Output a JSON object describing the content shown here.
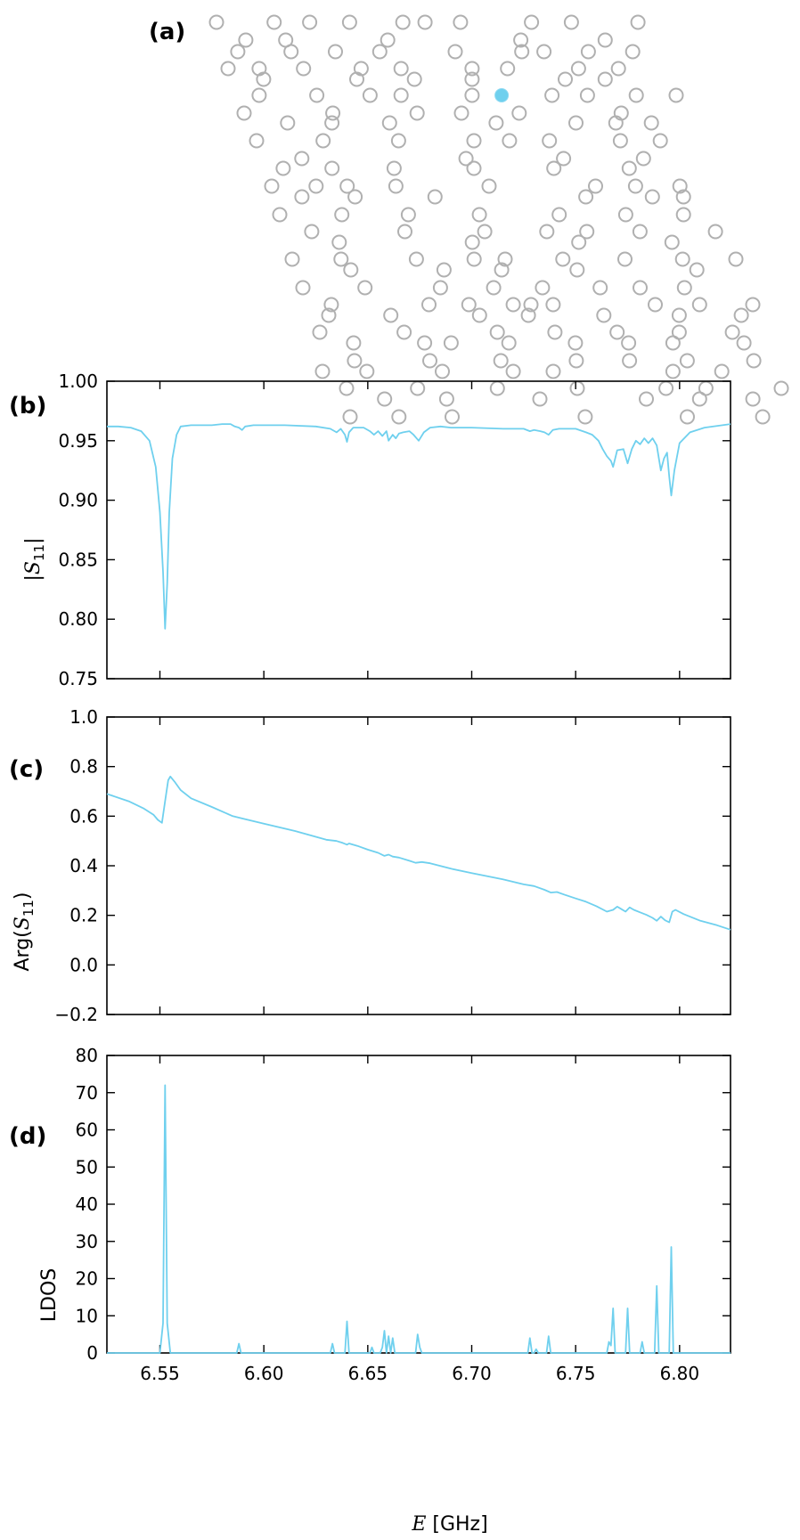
{
  "colors": {
    "accent": "#6fd0ee",
    "hole": "#b0b0b0",
    "axis": "#000000"
  },
  "panel_a": {
    "label": "(a)",
    "rows": [
      [
        25,
        17,
        [
          0.0,
          0.13,
          0.21,
          0.3,
          0.42,
          0.47,
          0.55,
          0.71,
          0.8,
          0.95
        ]
      ],
      [
        45,
        20,
        [
          0.06,
          0.15,
          0.38,
          0.68,
          0.87
        ]
      ],
      [
        58,
        26,
        [
          0.03,
          0.15,
          0.25,
          0.35,
          0.52,
          0.67,
          0.72,
          0.82,
          0.92
        ]
      ],
      [
        77,
        30,
        [
          0.0,
          0.07,
          0.17,
          0.3,
          0.39,
          0.55,
          0.63,
          0.79,
          0.88
        ]
      ],
      [
        89,
        40,
        [
          0.06,
          0.27,
          0.4,
          0.53,
          0.74,
          0.83
        ]
      ],
      [
        107,
        35,
        [
          0.06,
          0.19,
          0.31,
          0.38,
          0.54,
          0.72,
          0.8,
          0.91,
          1.0
        ]
      ],
      [
        127,
        48,
        [
          0.0,
          0.2,
          0.39,
          0.49,
          0.62,
          0.85
        ]
      ],
      [
        138,
        47,
        [
          0.1,
          0.2,
          0.33,
          0.57,
          0.75,
          0.84,
          0.92
        ]
      ],
      [
        158,
        62,
        [
          0.0,
          0.15,
          0.32,
          0.49,
          0.57,
          0.66,
          0.82,
          0.91
        ]
      ],
      [
        178,
        68,
        [
          0.09,
          0.46,
          0.68,
          0.86
        ]
      ],
      [
        189,
        62,
        [
          0.06,
          0.17,
          0.31,
          0.49,
          0.67,
          0.84
        ]
      ],
      [
        209,
        79,
        [
          0.0,
          0.1,
          0.17,
          0.28,
          0.49,
          0.73,
          0.82,
          0.92
        ]
      ],
      [
        221,
        83,
        [
          0.06,
          0.18,
          0.36,
          0.7,
          0.85,
          0.92
        ]
      ],
      [
        241,
        88,
        [
          0.0,
          0.14,
          0.29,
          0.45,
          0.63,
          0.78,
          0.91
        ]
      ],
      [
        260,
        99,
        [
          0.05,
          0.26,
          0.44,
          0.58,
          0.67,
          0.79,
          0.96
        ]
      ],
      [
        272,
        100,
        [
          0.11,
          0.41,
          0.65,
          0.86
        ]
      ],
      [
        291,
        102,
        [
          0.0,
          0.11,
          0.28,
          0.41,
          0.48,
          0.61,
          0.75,
          0.88,
          1.0
        ]
      ],
      [
        303,
        113,
        [
          0.11,
          0.32,
          0.45,
          0.62,
          0.89
        ]
      ],
      [
        323,
        114,
        [
          0.0,
          0.14,
          0.31,
          0.43,
          0.54,
          0.67,
          0.76,
          0.86
        ]
      ],
      [
        342,
        131,
        [
          0.03,
          0.25,
          0.34,
          0.44,
          0.48,
          0.53,
          0.76,
          0.86,
          0.98
        ]
      ],
      [
        354,
        143,
        [
          0.0,
          0.14,
          0.34,
          0.45,
          0.62,
          0.79,
          0.93
        ]
      ],
      [
        373,
        133,
        [
          0.0,
          0.19,
          0.4,
          0.53,
          0.67,
          0.81,
          0.93
        ]
      ],
      [
        385,
        141,
        [
          0.06,
          0.22,
          0.28,
          0.41,
          0.56,
          0.68,
          0.78,
          0.94
        ]
      ],
      [
        405,
        142,
        [
          0.06,
          0.23,
          0.39,
          0.56,
          0.68,
          0.81,
          0.96
        ]
      ],
      [
        417,
        136,
        [
          0.0,
          0.1,
          0.27,
          0.43,
          0.52,
          0.79,
          0.9
        ]
      ],
      [
        436,
        163,
        [
          0.0,
          0.16,
          0.34,
          0.52,
          0.72,
          0.81,
          0.98
        ]
      ],
      [
        448,
        136,
        [
          0.14,
          0.28,
          0.49,
          0.73,
          0.85,
          0.97
        ]
      ],
      [
        468,
        167,
        [
          0.0,
          0.11,
          0.23,
          0.53,
          0.76,
          0.93
        ]
      ]
    ],
    "highlight": [
      108,
      107
    ]
  },
  "x_axis": {
    "label_var": "E",
    "label_unit": " [GHz]",
    "min": 6.5245,
    "max": 6.8245,
    "ticks": [
      "6.55",
      "6.60",
      "6.65",
      "6.70",
      "6.75",
      "6.80"
    ],
    "tick_values": [
      6.55,
      6.6,
      6.65,
      6.7,
      6.75,
      6.8
    ]
  },
  "chart_data": [
    {
      "type": "line",
      "panel": "(b)",
      "ylabel": "|S11|",
      "ylim": [
        0.75,
        1.0
      ],
      "yticks": [
        "0.75",
        "0.80",
        "0.85",
        "0.90",
        "0.95",
        "1.00"
      ],
      "ytick_values": [
        0.75,
        0.8,
        0.85,
        0.9,
        0.95,
        1.0
      ],
      "xlim": [
        6.5245,
        6.8245
      ],
      "points": [
        [
          6.5245,
          0.962
        ],
        [
          6.53,
          0.962
        ],
        [
          6.536,
          0.961
        ],
        [
          6.541,
          0.958
        ],
        [
          6.545,
          0.95
        ],
        [
          6.548,
          0.928
        ],
        [
          6.55,
          0.89
        ],
        [
          6.5515,
          0.84
        ],
        [
          6.5525,
          0.792
        ],
        [
          6.5535,
          0.83
        ],
        [
          6.5545,
          0.89
        ],
        [
          6.556,
          0.935
        ],
        [
          6.558,
          0.955
        ],
        [
          6.56,
          0.962
        ],
        [
          6.565,
          0.963
        ],
        [
          6.575,
          0.963
        ],
        [
          6.58,
          0.964
        ],
        [
          6.584,
          0.964
        ],
        [
          6.586,
          0.962
        ],
        [
          6.588,
          0.961
        ],
        [
          6.5895,
          0.959
        ],
        [
          6.591,
          0.962
        ],
        [
          6.595,
          0.963
        ],
        [
          6.61,
          0.963
        ],
        [
          6.625,
          0.962
        ],
        [
          6.632,
          0.96
        ],
        [
          6.635,
          0.957
        ],
        [
          6.637,
          0.96
        ],
        [
          6.639,
          0.955
        ],
        [
          6.64,
          0.949
        ],
        [
          6.641,
          0.957
        ],
        [
          6.643,
          0.961
        ],
        [
          6.648,
          0.961
        ],
        [
          6.651,
          0.958
        ],
        [
          6.653,
          0.955
        ],
        [
          6.655,
          0.958
        ],
        [
          6.657,
          0.954
        ],
        [
          6.659,
          0.958
        ],
        [
          6.66,
          0.95
        ],
        [
          6.662,
          0.955
        ],
        [
          6.6635,
          0.952
        ],
        [
          6.665,
          0.956
        ],
        [
          6.667,
          0.957
        ],
        [
          6.67,
          0.958
        ],
        [
          6.672,
          0.955
        ],
        [
          6.6745,
          0.95
        ],
        [
          6.677,
          0.957
        ],
        [
          6.68,
          0.961
        ],
        [
          6.685,
          0.962
        ],
        [
          6.69,
          0.961
        ],
        [
          6.7,
          0.961
        ],
        [
          6.715,
          0.96
        ],
        [
          6.725,
          0.96
        ],
        [
          6.728,
          0.958
        ],
        [
          6.73,
          0.959
        ],
        [
          6.733,
          0.958
        ],
        [
          6.735,
          0.957
        ],
        [
          6.737,
          0.955
        ],
        [
          6.739,
          0.959
        ],
        [
          6.742,
          0.96
        ],
        [
          6.75,
          0.96
        ],
        [
          6.755,
          0.957
        ],
        [
          6.758,
          0.955
        ],
        [
          6.761,
          0.95
        ],
        [
          6.763,
          0.943
        ],
        [
          6.765,
          0.937
        ],
        [
          6.767,
          0.933
        ],
        [
          6.768,
          0.928
        ],
        [
          6.77,
          0.942
        ],
        [
          6.773,
          0.943
        ],
        [
          6.775,
          0.931
        ],
        [
          6.777,
          0.943
        ],
        [
          6.779,
          0.95
        ],
        [
          6.781,
          0.947
        ],
        [
          6.783,
          0.952
        ],
        [
          6.785,
          0.948
        ],
        [
          6.787,
          0.952
        ],
        [
          6.789,
          0.946
        ],
        [
          6.791,
          0.925
        ],
        [
          6.7925,
          0.935
        ],
        [
          6.794,
          0.94
        ],
        [
          6.795,
          0.92
        ],
        [
          6.796,
          0.904
        ],
        [
          6.7975,
          0.925
        ],
        [
          6.8,
          0.948
        ],
        [
          6.805,
          0.957
        ],
        [
          6.812,
          0.961
        ],
        [
          6.8245,
          0.964
        ]
      ]
    },
    {
      "type": "line",
      "panel": "(c)",
      "ylabel": "Arg(S11)",
      "ylim": [
        -0.2,
        1.0
      ],
      "yticks": [
        "−0.2",
        "0.0",
        "0.2",
        "0.4",
        "0.6",
        "0.8",
        "1.0"
      ],
      "ytick_values": [
        -0.2,
        0.0,
        0.2,
        0.4,
        0.6,
        0.8,
        1.0
      ],
      "xlim": [
        6.5245,
        6.8245
      ],
      "points": [
        [
          6.5245,
          0.69
        ],
        [
          6.535,
          0.66
        ],
        [
          6.542,
          0.632
        ],
        [
          6.547,
          0.605
        ],
        [
          6.549,
          0.585
        ],
        [
          6.551,
          0.573
        ],
        [
          6.5525,
          0.66
        ],
        [
          6.554,
          0.745
        ],
        [
          6.555,
          0.76
        ],
        [
          6.557,
          0.74
        ],
        [
          6.56,
          0.705
        ],
        [
          6.565,
          0.672
        ],
        [
          6.575,
          0.637
        ],
        [
          6.585,
          0.6
        ],
        [
          6.59,
          0.59
        ],
        [
          6.6,
          0.57
        ],
        [
          6.615,
          0.54
        ],
        [
          6.63,
          0.505
        ],
        [
          6.635,
          0.5
        ],
        [
          6.638,
          0.492
        ],
        [
          6.64,
          0.485
        ],
        [
          6.641,
          0.49
        ],
        [
          6.645,
          0.48
        ],
        [
          6.65,
          0.465
        ],
        [
          6.655,
          0.452
        ],
        [
          6.658,
          0.44
        ],
        [
          6.66,
          0.445
        ],
        [
          6.662,
          0.437
        ],
        [
          6.665,
          0.433
        ],
        [
          6.67,
          0.42
        ],
        [
          6.673,
          0.412
        ],
        [
          6.676,
          0.415
        ],
        [
          6.68,
          0.41
        ],
        [
          6.69,
          0.388
        ],
        [
          6.7,
          0.37
        ],
        [
          6.715,
          0.345
        ],
        [
          6.725,
          0.325
        ],
        [
          6.73,
          0.318
        ],
        [
          6.735,
          0.303
        ],
        [
          6.738,
          0.292
        ],
        [
          6.741,
          0.294
        ],
        [
          6.745,
          0.282
        ],
        [
          6.75,
          0.268
        ],
        [
          6.755,
          0.255
        ],
        [
          6.76,
          0.237
        ],
        [
          6.765,
          0.215
        ],
        [
          6.768,
          0.222
        ],
        [
          6.77,
          0.235
        ],
        [
          6.772,
          0.225
        ],
        [
          6.774,
          0.215
        ],
        [
          6.776,
          0.232
        ],
        [
          6.778,
          0.222
        ],
        [
          6.781,
          0.212
        ],
        [
          6.784,
          0.202
        ],
        [
          6.787,
          0.19
        ],
        [
          6.789,
          0.178
        ],
        [
          6.791,
          0.195
        ],
        [
          6.793,
          0.18
        ],
        [
          6.795,
          0.172
        ],
        [
          6.7965,
          0.215
        ],
        [
          6.798,
          0.222
        ],
        [
          6.802,
          0.205
        ],
        [
          6.81,
          0.178
        ],
        [
          6.818,
          0.16
        ],
        [
          6.8245,
          0.142
        ]
      ]
    },
    {
      "type": "line",
      "panel": "(d)",
      "ylabel": "LDOS",
      "ylim": [
        0,
        80
      ],
      "yticks": [
        "0",
        "10",
        "20",
        "30",
        "40",
        "50",
        "60",
        "70",
        "80"
      ],
      "ytick_values": [
        0,
        10,
        20,
        30,
        40,
        50,
        60,
        70,
        80
      ],
      "xlim": [
        6.5245,
        6.8245
      ],
      "points": [
        [
          6.5245,
          0
        ],
        [
          6.55,
          0
        ],
        [
          6.5515,
          8
        ],
        [
          6.5525,
          72
        ],
        [
          6.5535,
          8
        ],
        [
          6.555,
          0
        ],
        [
          6.587,
          0
        ],
        [
          6.588,
          2.5
        ],
        [
          6.589,
          0
        ],
        [
          6.632,
          0
        ],
        [
          6.633,
          2.5
        ],
        [
          6.634,
          0
        ],
        [
          6.639,
          0
        ],
        [
          6.64,
          8.5
        ],
        [
          6.641,
          0
        ],
        [
          6.651,
          0
        ],
        [
          6.652,
          1.5
        ],
        [
          6.653,
          0
        ],
        [
          6.656,
          0
        ],
        [
          6.657,
          1.5
        ],
        [
          6.658,
          6
        ],
        [
          6.659,
          0
        ],
        [
          6.66,
          4.5
        ],
        [
          6.661,
          0
        ],
        [
          6.662,
          4
        ],
        [
          6.663,
          0
        ],
        [
          6.673,
          0
        ],
        [
          6.674,
          5
        ],
        [
          6.675,
          1.5
        ],
        [
          6.676,
          0
        ],
        [
          6.727,
          0
        ],
        [
          6.728,
          4
        ],
        [
          6.729,
          0
        ],
        [
          6.73,
          0
        ],
        [
          6.731,
          1
        ],
        [
          6.732,
          0
        ],
        [
          6.736,
          0
        ],
        [
          6.737,
          4.5
        ],
        [
          6.738,
          0
        ],
        [
          6.765,
          0
        ],
        [
          6.766,
          3
        ],
        [
          6.767,
          2
        ],
        [
          6.768,
          12
        ],
        [
          6.769,
          0
        ],
        [
          6.774,
          0
        ],
        [
          6.775,
          12
        ],
        [
          6.776,
          0
        ],
        [
          6.781,
          0
        ],
        [
          6.782,
          3
        ],
        [
          6.783,
          0
        ],
        [
          6.788,
          0
        ],
        [
          6.789,
          18
        ],
        [
          6.79,
          0
        ],
        [
          6.795,
          0
        ],
        [
          6.796,
          28.5
        ],
        [
          6.797,
          0
        ],
        [
          6.8,
          0
        ],
        [
          6.8245,
          0
        ]
      ]
    }
  ]
}
